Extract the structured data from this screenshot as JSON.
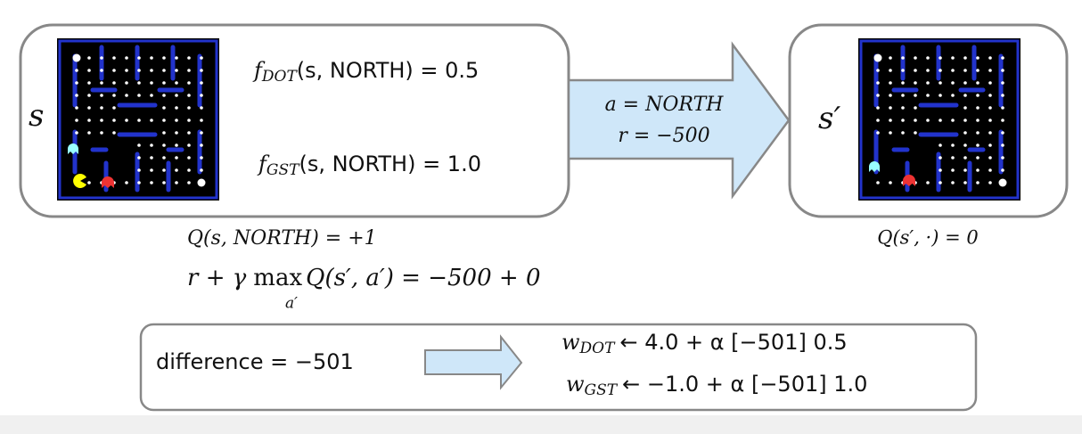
{
  "state": {
    "label": "s",
    "features": [
      {
        "symbol": "f",
        "subscript": "DOT",
        "expression": "(s, NORTH) = 0.5"
      },
      {
        "symbol": "f",
        "subscript": "GST",
        "expression": "(s, NORTH) = 1.0"
      }
    ]
  },
  "transition": {
    "action": "a = NORTH",
    "reward": "r = −500"
  },
  "next_state": {
    "label": "s′",
    "q_value": "Q(s′, ·) = 0"
  },
  "q_current": "Q(s, NORTH) = +1",
  "target": {
    "prefix": "r + γ",
    "operator": "max",
    "operator_subscript": "a′",
    "expression": "Q(s′, a′) = −500 + 0"
  },
  "difference": "difference = −501",
  "updates": [
    {
      "symbol": "w",
      "subscript": "DOT",
      "expression": "← 4.0 + α [−501] 0.5"
    },
    {
      "symbol": "w",
      "subscript": "GST",
      "expression": "← −1.0 + α [−501] 1.0"
    }
  ]
}
